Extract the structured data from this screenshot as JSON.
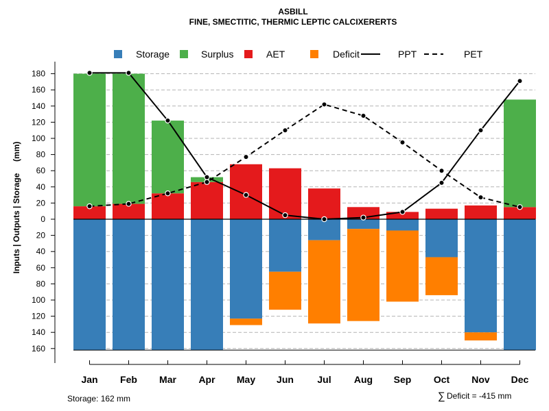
{
  "chart_data": {
    "type": "bar",
    "title": "ASBILL",
    "subtitle": "FINE, SMECTITIC, THERMIC LEPTIC CALCIXERERTS",
    "ylabel": "Inputs | Outputs | Storage     (mm)",
    "ylim": [
      -162,
      190
    ],
    "grid": true,
    "legend_position": "top",
    "categories": [
      "Jan",
      "Feb",
      "Mar",
      "Apr",
      "May",
      "Jun",
      "Jul",
      "Aug",
      "Sep",
      "Oct",
      "Nov",
      "Dec"
    ],
    "y_ticks": [
      180,
      160,
      140,
      120,
      100,
      80,
      60,
      40,
      20,
      0,
      -20,
      -40,
      -60,
      -80,
      -100,
      -120,
      -140,
      -160
    ],
    "y_tick_labels": [
      "180",
      "160",
      "140",
      "120",
      "100",
      "80",
      "60",
      "40",
      "20",
      "0",
      "20",
      "40",
      "60",
      "80",
      "100",
      "120",
      "140",
      "160"
    ],
    "legend": [
      {
        "label": "Storage",
        "kind": "box",
        "color": "#377EB8"
      },
      {
        "label": "Surplus",
        "kind": "box",
        "color": "#4DAF4A"
      },
      {
        "label": "AET",
        "kind": "box",
        "color": "#E41A1C"
      },
      {
        "label": "Deficit",
        "kind": "box",
        "color": "#FF7F00"
      },
      {
        "label": "PPT",
        "kind": "solid-line",
        "color": "#000000"
      },
      {
        "label": "PET",
        "kind": "dashed-line",
        "color": "#000000"
      }
    ],
    "series": [
      {
        "name": "AET",
        "color": "#E41A1C",
        "values": [
          16,
          19,
          32,
          46,
          68,
          63,
          38,
          15,
          9,
          13,
          17,
          15
        ]
      },
      {
        "name": "Surplus",
        "color": "#4DAF4A",
        "values": [
          164,
          161,
          90,
          6,
          0,
          0,
          0,
          0,
          0,
          0,
          0,
          133
        ]
      },
      {
        "name": "Storage",
        "color": "#377EB8",
        "values": [
          162,
          162,
          162,
          162,
          123,
          65,
          26,
          12,
          14,
          47,
          140,
          162
        ]
      },
      {
        "name": "Deficit",
        "color": "#FF7F00",
        "values": [
          0,
          0,
          0,
          0,
          8,
          47,
          103,
          114,
          88,
          47,
          10,
          0
        ]
      },
      {
        "name": "PPT",
        "color": "#000000",
        "values": [
          181,
          181,
          122,
          52,
          30,
          5,
          0,
          2,
          9,
          45,
          110,
          171
        ]
      },
      {
        "name": "PET",
        "color": "#000000",
        "values": [
          16,
          19,
          32,
          46,
          77,
          110,
          142,
          128,
          95,
          60,
          27,
          15
        ]
      }
    ],
    "annotations": {
      "storage": "Storage: 162 mm",
      "deficit_symbol": "∑",
      "deficit": "Deficit = -415 mm"
    }
  }
}
